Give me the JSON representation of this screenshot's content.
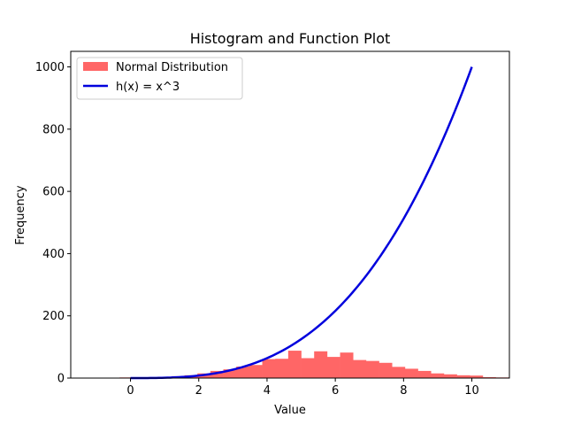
{
  "chart_data": {
    "type": "bar",
    "title": "Histogram and Function Plot",
    "xlabel": "Value",
    "ylabel": "Frequency",
    "xlim": [
      -1.75,
      11.1
    ],
    "ylim": [
      0,
      1050
    ],
    "xticks": [
      0,
      2,
      4,
      6,
      8,
      10
    ],
    "yticks": [
      0,
      200,
      400,
      600,
      800,
      1000
    ],
    "grid": false,
    "legend_placement": "top-left",
    "histogram": {
      "name": "Normal Distribution",
      "color": "#ff6666",
      "bin_start": -0.7,
      "bin_width": 0.38,
      "counts": [
        1,
        2,
        1,
        2,
        4,
        6,
        9,
        15,
        23,
        28,
        37,
        42,
        61,
        62,
        88,
        64,
        86,
        68,
        82,
        58,
        55,
        49,
        36,
        30,
        23,
        15,
        12,
        9,
        8,
        3,
        2
      ]
    },
    "function": {
      "name": "h(x) = x^3",
      "color": "#0000dd",
      "x_range": [
        0,
        10
      ],
      "exponent": 3
    }
  }
}
